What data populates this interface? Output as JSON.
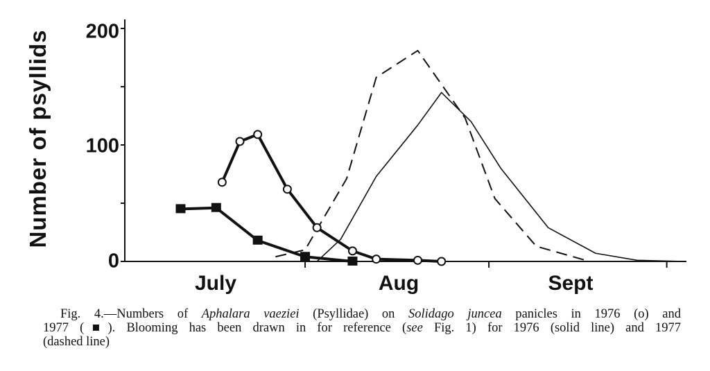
{
  "chart_data": {
    "type": "line",
    "ylabel": "Number of psyllids",
    "xlabel": "",
    "ylim": [
      0,
      200
    ],
    "yticks": [
      0,
      50,
      100,
      150,
      200
    ],
    "ytick_labels": [
      "0",
      "100",
      "200"
    ],
    "x_range": [
      "Jul 1",
      "Oct 4"
    ],
    "month_labels": [
      "July",
      "Aug",
      "Sept"
    ],
    "month_boundaries": [
      "Aug 1",
      "Sep 1",
      "Oct 1"
    ],
    "grid": false,
    "series": [
      {
        "key": "psyllids_1976",
        "marker": "open-circle",
        "line": "thick-solid",
        "x": [
          "Jul 18",
          "Jul 21",
          "Jul 24",
          "Jul 29",
          "Aug 3",
          "Aug 9",
          "Aug 13",
          "Aug 20",
          "Aug 24"
        ],
        "y": [
          68,
          103,
          109,
          62,
          29,
          9,
          2,
          1,
          0
        ]
      },
      {
        "key": "psyllids_1977",
        "marker": "filled-square",
        "line": "thick-solid",
        "x": [
          "Jul 11",
          "Jul 17",
          "Jul 24",
          "Aug 1",
          "Aug 9"
        ],
        "y": [
          45,
          46,
          18,
          4,
          0
        ]
      },
      {
        "key": "blooming_1976",
        "marker": "none",
        "line": "solid",
        "x": [
          "Aug 3",
          "Aug 7",
          "Aug 13",
          "Aug 20",
          "Aug 24",
          "Aug 29",
          "Sep 3",
          "Sep 11",
          "Sep 19",
          "Sep 26",
          "Oct 4"
        ],
        "y": [
          0,
          19,
          73,
          117,
          145,
          120,
          80,
          29,
          7,
          1,
          0
        ]
      },
      {
        "key": "blooming_1977",
        "marker": "none",
        "line": "dashed",
        "x": [
          "Jul 27",
          "Aug 1",
          "Aug 8",
          "Aug 13",
          "Aug 20",
          "Aug 28",
          "Sep 2",
          "Sep 9",
          "Sep 18"
        ],
        "y": [
          4,
          10,
          71,
          158,
          181,
          123,
          54,
          13,
          0
        ]
      }
    ],
    "colors": {
      "ink": "#111111",
      "background": "#ffffff"
    }
  },
  "caption": {
    "line1_a": "Fig. 4.—Numbers of ",
    "line1_species": "Aphalara vaeziei",
    "line1_b": " (Psyllidae) on ",
    "line1_plant": "Solidago juncea",
    "line1_c": " panicles in 1976 (o) and",
    "line2_a": "1977 (■). Blooming has been drawn in for reference (",
    "line2_see": "see",
    "line2_b": " Fig. 1) for 1976 (solid line) and 1977",
    "line3": "(dashed line)"
  }
}
